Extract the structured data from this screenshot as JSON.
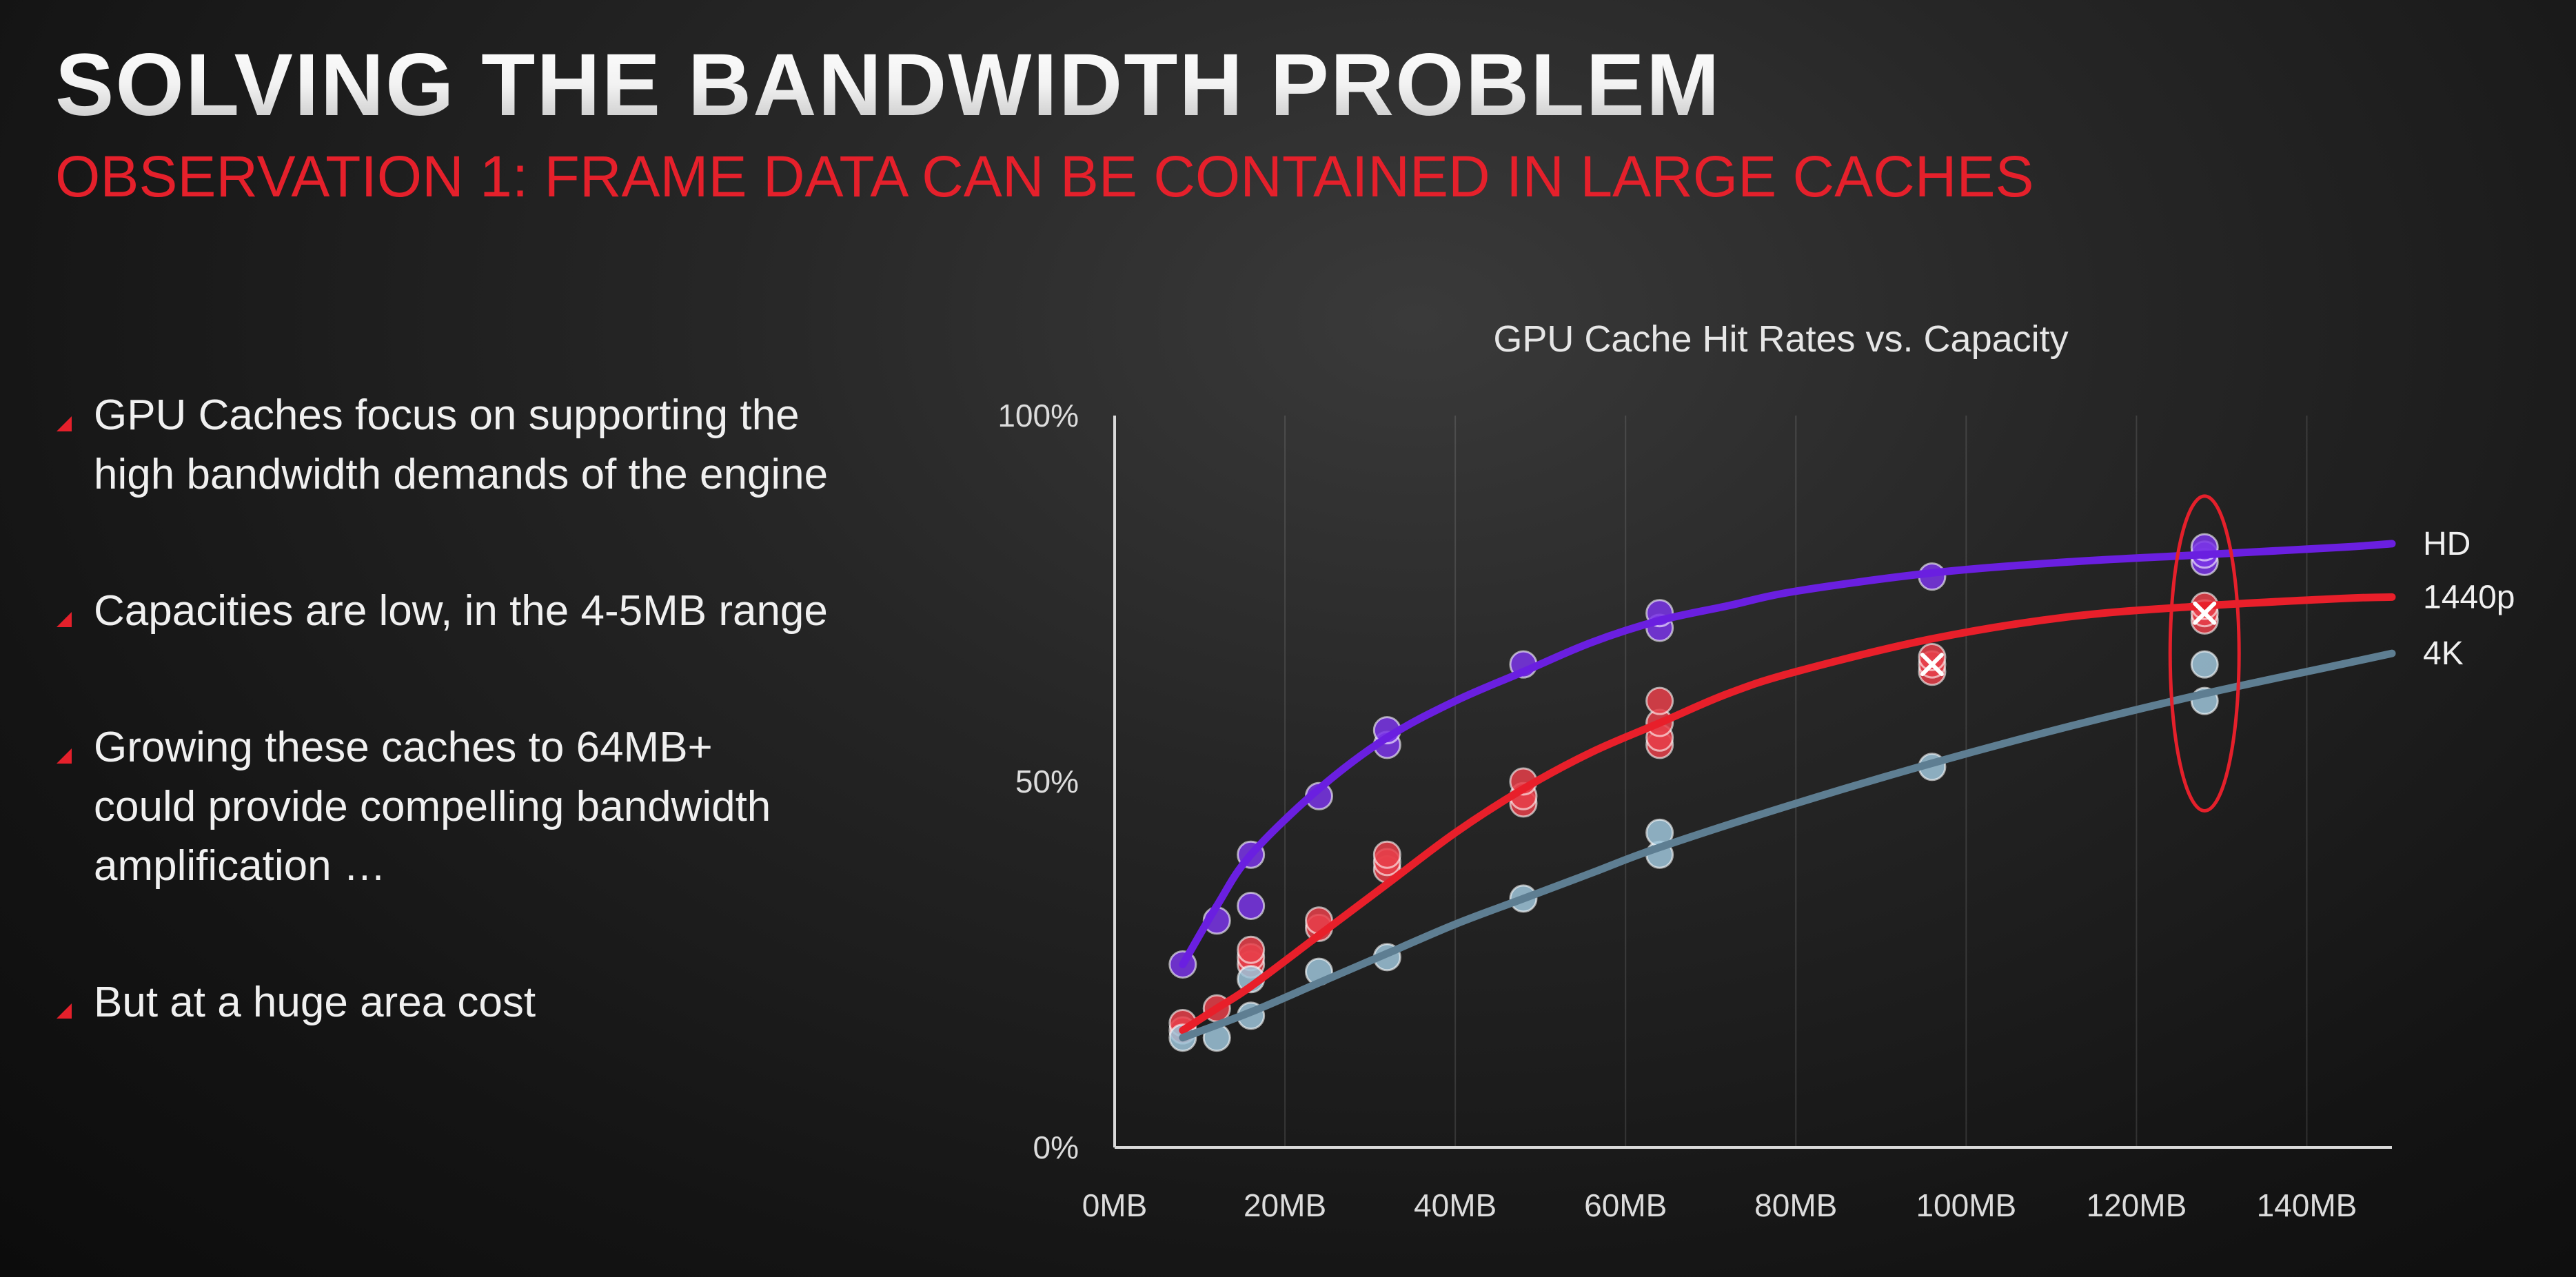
{
  "slide": {
    "title": "SOLVING THE BANDWIDTH PROBLEM",
    "subtitle": "OBSERVATION 1: FRAME DATA CAN BE CONTAINED IN LARGE CACHES",
    "bullets": [
      "GPU Caches focus on supporting the\nhigh bandwidth demands of the engine",
      "Capacities are low, in the 4-5MB range",
      "Growing these caches to 64MB+\ncould provide compelling bandwidth\namplification …",
      "But at a huge area cost"
    ],
    "bullet_icon": "red-triangle-icon",
    "accent_color": "#e5202b"
  },
  "chart_data": {
    "type": "scatter",
    "title": "GPU Cache Hit Rates vs. Capacity",
    "xlabel": "",
    "ylabel": "",
    "x_ticks": [
      "0MB",
      "20MB",
      "40MB",
      "60MB",
      "80MB",
      "100MB",
      "120MB",
      "140MB"
    ],
    "x_tick_values": [
      0,
      20,
      40,
      60,
      80,
      100,
      120,
      140
    ],
    "y_ticks": [
      "0%",
      "50%",
      "100%"
    ],
    "y_tick_values": [
      0,
      50,
      100
    ],
    "xlim": [
      0,
      150
    ],
    "ylim": [
      0,
      100
    ],
    "grid": "vertical",
    "legend": "right, at line ends",
    "highlight": {
      "shape": "red-ellipse",
      "x": 128,
      "y_range": [
        46,
        89
      ]
    },
    "series": [
      {
        "name": "HD",
        "color": "#6a1fe0",
        "points": [
          [
            8,
            25
          ],
          [
            12,
            31
          ],
          [
            16,
            33
          ],
          [
            16,
            40
          ],
          [
            24,
            48
          ],
          [
            32,
            55
          ],
          [
            32,
            57
          ],
          [
            48,
            66
          ],
          [
            64,
            71
          ],
          [
            64,
            73
          ],
          [
            96,
            78
          ],
          [
            128,
            80
          ],
          [
            128,
            81
          ],
          [
            128,
            82
          ]
        ],
        "fit": [
          [
            8,
            25
          ],
          [
            12,
            33
          ],
          [
            16,
            40
          ],
          [
            24,
            49
          ],
          [
            32,
            56
          ],
          [
            40,
            61
          ],
          [
            48,
            65
          ],
          [
            56,
            69
          ],
          [
            64,
            72
          ],
          [
            72,
            74
          ],
          [
            80,
            76
          ],
          [
            96,
            78.5
          ],
          [
            112,
            80
          ],
          [
            128,
            81
          ],
          [
            144,
            82
          ],
          [
            150,
            82.5
          ]
        ]
      },
      {
        "name": "1440p",
        "color": "#e81f2a",
        "points": [
          [
            8,
            16
          ],
          [
            8,
            17
          ],
          [
            12,
            19
          ],
          [
            16,
            25
          ],
          [
            16,
            26
          ],
          [
            16,
            27
          ],
          [
            24,
            30
          ],
          [
            24,
            31
          ],
          [
            32,
            38
          ],
          [
            32,
            39
          ],
          [
            32,
            40
          ],
          [
            48,
            47
          ],
          [
            48,
            48
          ],
          [
            48,
            50
          ],
          [
            64,
            55
          ],
          [
            64,
            56
          ],
          [
            64,
            58
          ],
          [
            64,
            61
          ],
          [
            96,
            65
          ],
          [
            96,
            66
          ],
          [
            96,
            67
          ],
          [
            128,
            72
          ],
          [
            128,
            73
          ],
          [
            128,
            74
          ]
        ],
        "fit": [
          [
            8,
            16
          ],
          [
            12,
            19
          ],
          [
            16,
            22
          ],
          [
            24,
            29
          ],
          [
            32,
            36
          ],
          [
            40,
            43
          ],
          [
            48,
            49
          ],
          [
            56,
            54
          ],
          [
            64,
            58
          ],
          [
            72,
            62
          ],
          [
            80,
            65
          ],
          [
            96,
            69.5
          ],
          [
            112,
            72.5
          ],
          [
            128,
            74
          ],
          [
            144,
            75
          ],
          [
            150,
            75.2
          ]
        ]
      },
      {
        "name": "4K",
        "color": "#5e7e92",
        "points": [
          [
            8,
            15
          ],
          [
            12,
            15
          ],
          [
            16,
            18
          ],
          [
            16,
            23
          ],
          [
            24,
            24
          ],
          [
            32,
            26
          ],
          [
            48,
            34
          ],
          [
            64,
            40
          ],
          [
            64,
            43
          ],
          [
            96,
            52
          ],
          [
            128,
            61
          ],
          [
            128,
            66
          ]
        ],
        "fit": [
          [
            8,
            15
          ],
          [
            16,
            18.5
          ],
          [
            24,
            22.5
          ],
          [
            32,
            26.5
          ],
          [
            40,
            30.5
          ],
          [
            48,
            34
          ],
          [
            56,
            37.5
          ],
          [
            64,
            41
          ],
          [
            80,
            47
          ],
          [
            96,
            52.5
          ],
          [
            112,
            57.5
          ],
          [
            128,
            62
          ],
          [
            144,
            66
          ],
          [
            150,
            67.5
          ]
        ]
      }
    ]
  }
}
